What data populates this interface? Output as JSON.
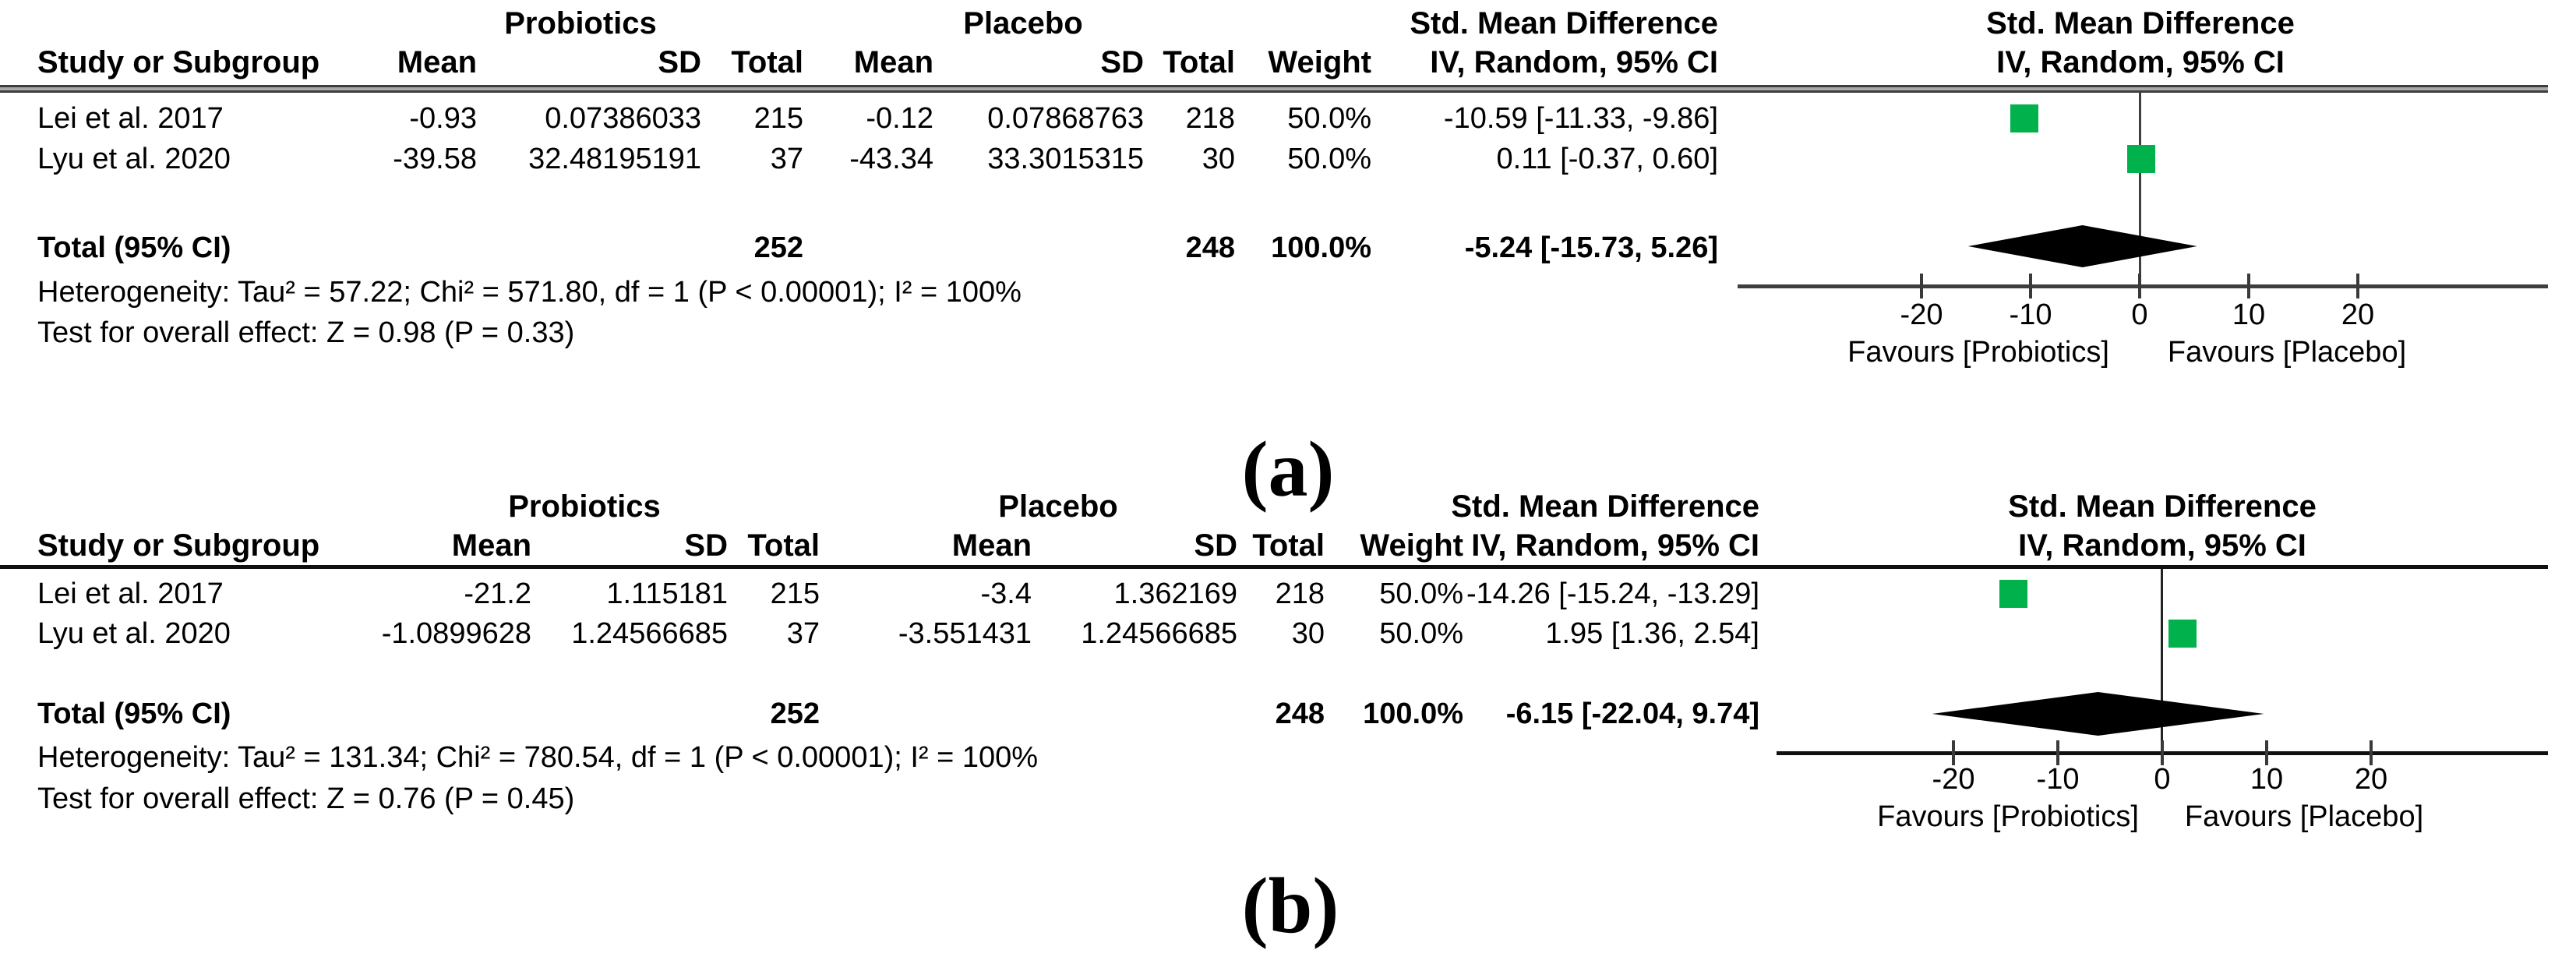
{
  "colors": {
    "marker_green": "#00b14c",
    "diamond_black": "#000000",
    "axis_gray": "#3e3e3e"
  },
  "panels": [
    {
      "caption": "(a)",
      "headers": {
        "group1": "Probiotics",
        "group2": "Placebo",
        "study": "Study or Subgroup",
        "mean": "Mean",
        "sd": "SD",
        "total": "Total",
        "weight": "Weight",
        "effect": "Std. Mean Difference",
        "effect_sub": "IV, Random, 95% CI"
      },
      "rows": [
        {
          "study": "Lei et al. 2017",
          "g1_mean": "-0.93",
          "g1_sd": "0.07386033",
          "g1_total": "215",
          "g2_mean": "-0.12",
          "g2_sd": "0.07868763",
          "g2_total": "218",
          "weight": "50.0%",
          "smd_ci": "-10.59 [-11.33, -9.86]"
        },
        {
          "study": "Lyu et al. 2020",
          "g1_mean": "-39.58",
          "g1_sd": "32.48195191",
          "g1_total": "37",
          "g2_mean": "-43.34",
          "g2_sd": "33.3015315",
          "g2_total": "30",
          "weight": "50.0%",
          "smd_ci": "0.11 [-0.37, 0.60]"
        }
      ],
      "total_row": {
        "label": "Total (95% CI)",
        "g1_total": "252",
        "g2_total": "248",
        "weight": "100.0%",
        "smd_ci": "-5.24 [-15.73, 5.26]"
      },
      "heterogeneity": "Heterogeneity: Tau² = 57.22; Chi² = 571.80, df = 1 (P < 0.00001); I² = 100%",
      "overall_effect": "Test for overall effect: Z = 0.98 (P = 0.33)",
      "favours_left": "Favours [Probiotics]",
      "favours_right": "Favours [Placebo]"
    },
    {
      "caption": "(b)",
      "headers": {
        "group1": "Probiotics",
        "group2": "Placebo",
        "study": "Study or Subgroup",
        "mean": "Mean",
        "sd": "SD",
        "total": "Total",
        "weight": "Weight",
        "effect": "Std. Mean Difference",
        "effect_sub": "IV, Random, 95% CI"
      },
      "rows": [
        {
          "study": "Lei et al. 2017",
          "g1_mean": "-21.2",
          "g1_sd": "1.115181",
          "g1_total": "215",
          "g2_mean": "-3.4",
          "g2_sd": "1.362169",
          "g2_total": "218",
          "weight": "50.0%",
          "smd_ci": "-14.26 [-15.24, -13.29]"
        },
        {
          "study": "Lyu et al. 2020",
          "g1_mean": "-1.0899628",
          "g1_sd": "1.24566685",
          "g1_total": "37",
          "g2_mean": "-3.551431",
          "g2_sd": "1.24566685",
          "g2_total": "30",
          "weight": "50.0%",
          "smd_ci": "1.95 [1.36, 2.54]"
        }
      ],
      "total_row": {
        "label": "Total (95% CI)",
        "g1_total": "252",
        "g2_total": "248",
        "weight": "100.0%",
        "smd_ci": "-6.15 [-22.04, 9.74]"
      },
      "heterogeneity": "Heterogeneity: Tau² = 131.34; Chi² = 780.54, df = 1 (P < 0.00001); I² = 100%",
      "overall_effect": "Test for overall effect: Z = 0.76 (P = 0.45)",
      "favours_left": "Favours [Probiotics]",
      "favours_right": "Favours [Placebo]"
    }
  ],
  "chart_data": [
    {
      "type": "scatter",
      "panel": "a",
      "title": "Std. Mean Difference",
      "subtitle": "IV, Random, 95% CI",
      "xticks": [
        -20,
        -10,
        0,
        10,
        20
      ],
      "xlim": [
        -37,
        37
      ],
      "grid": false,
      "favours_left": "Favours [Probiotics]",
      "favours_right": "Favours [Placebo]",
      "points": [
        {
          "study": "Lei et al. 2017",
          "smd": -10.59,
          "ci": [
            -11.33,
            -9.86
          ],
          "weight_pct": 50.0
        },
        {
          "study": "Lyu et al. 2020",
          "smd": 0.11,
          "ci": [
            -0.37,
            0.6
          ],
          "weight_pct": 50.0
        }
      ],
      "total": {
        "label": "Total (95% CI)",
        "smd": -5.24,
        "ci": [
          -15.73,
          5.26
        ],
        "weight_pct": 100.0
      }
    },
    {
      "type": "scatter",
      "panel": "b",
      "title": "Std. Mean Difference",
      "subtitle": "IV, Random, 95% CI",
      "xticks": [
        -20,
        -10,
        0,
        10,
        20
      ],
      "xlim": [
        -37,
        37
      ],
      "grid": false,
      "favours_left": "Favours [Probiotics]",
      "favours_right": "Favours [Placebo]",
      "points": [
        {
          "study": "Lei et al. 2017",
          "smd": -14.26,
          "ci": [
            -15.24,
            -13.29
          ],
          "weight_pct": 50.0
        },
        {
          "study": "Lyu et al. 2020",
          "smd": 1.95,
          "ci": [
            1.36,
            2.54
          ],
          "weight_pct": 50.0
        }
      ],
      "total": {
        "label": "Total (95% CI)",
        "smd": -6.15,
        "ci": [
          -22.04,
          9.74
        ],
        "weight_pct": 100.0
      }
    }
  ]
}
